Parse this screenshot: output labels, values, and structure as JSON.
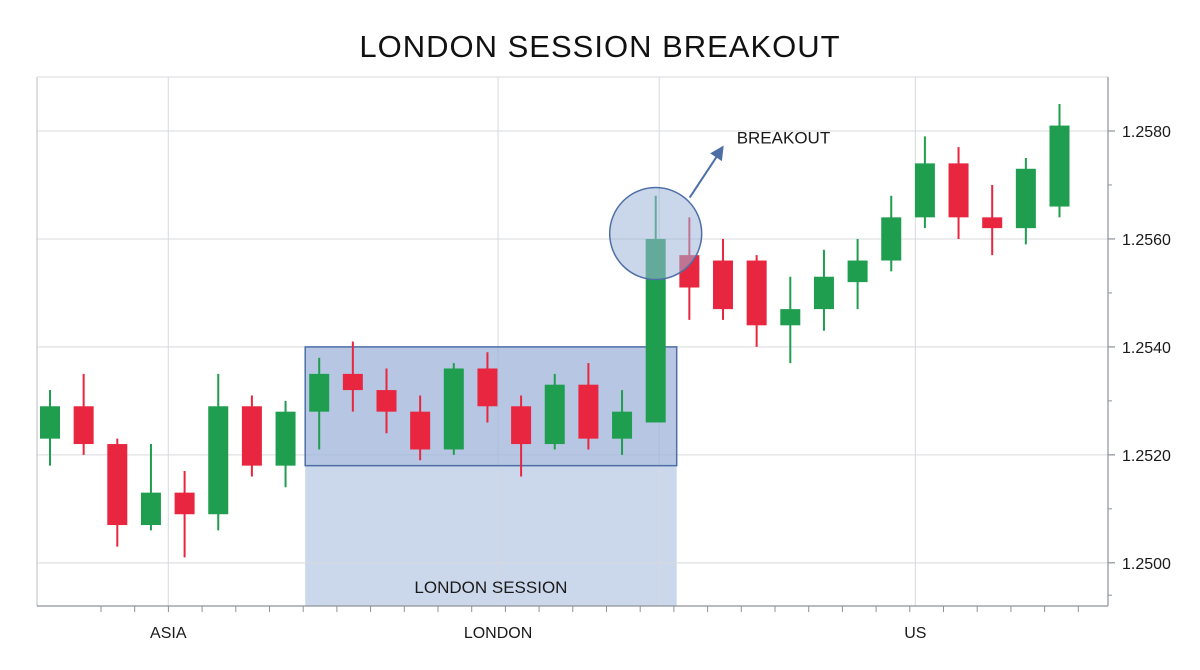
{
  "chart_data": {
    "type": "candlestick",
    "title": "LONDON SESSION BREAKOUT",
    "y_ticks": [
      "1.2500",
      "1.2520",
      "1.2540",
      "1.2560",
      "1.2580"
    ],
    "y_tick_values": [
      1.25,
      1.252,
      1.254,
      1.256,
      1.258
    ],
    "ylim": [
      1.2492,
      1.259
    ],
    "x_session_labels": [
      {
        "label": "ASIA",
        "candle": 3.5
      },
      {
        "label": "LONDON",
        "candle": 13.3
      },
      {
        "label": "US",
        "candle": 25.7
      }
    ],
    "bull_color": "#1e9e4e",
    "bear_color": "#e8263f",
    "candles": [
      {
        "o": 1.2523,
        "h": 1.2532,
        "l": 1.2518,
        "c": 1.2529
      },
      {
        "o": 1.2529,
        "h": 1.2535,
        "l": 1.252,
        "c": 1.2522
      },
      {
        "o": 1.2522,
        "h": 1.2523,
        "l": 1.2503,
        "c": 1.2507
      },
      {
        "o": 1.2507,
        "h": 1.2522,
        "l": 1.2506,
        "c": 1.2513
      },
      {
        "o": 1.2513,
        "h": 1.2517,
        "l": 1.2501,
        "c": 1.2509
      },
      {
        "o": 1.2509,
        "h": 1.2535,
        "l": 1.2506,
        "c": 1.2529
      },
      {
        "o": 1.2529,
        "h": 1.2531,
        "l": 1.2516,
        "c": 1.2518
      },
      {
        "o": 1.2518,
        "h": 1.253,
        "l": 1.2514,
        "c": 1.2528
      },
      {
        "o": 1.2528,
        "h": 1.2538,
        "l": 1.2521,
        "c": 1.2535
      },
      {
        "o": 1.2535,
        "h": 1.2541,
        "l": 1.2528,
        "c": 1.2532
      },
      {
        "o": 1.2532,
        "h": 1.2536,
        "l": 1.2524,
        "c": 1.2528
      },
      {
        "o": 1.2528,
        "h": 1.2531,
        "l": 1.2519,
        "c": 1.2521
      },
      {
        "o": 1.2521,
        "h": 1.2537,
        "l": 1.252,
        "c": 1.2536
      },
      {
        "o": 1.2536,
        "h": 1.2539,
        "l": 1.2526,
        "c": 1.2529
      },
      {
        "o": 1.2529,
        "h": 1.2531,
        "l": 1.2516,
        "c": 1.2522
      },
      {
        "o": 1.2522,
        "h": 1.2535,
        "l": 1.2521,
        "c": 1.2533
      },
      {
        "o": 1.2533,
        "h": 1.2537,
        "l": 1.2521,
        "c": 1.2523
      },
      {
        "o": 1.2523,
        "h": 1.2532,
        "l": 1.252,
        "c": 1.2528
      },
      {
        "o": 1.2526,
        "h": 1.2568,
        "l": 1.2526,
        "c": 1.256
      },
      {
        "o": 1.2557,
        "h": 1.2564,
        "l": 1.2545,
        "c": 1.2551
      },
      {
        "o": 1.2556,
        "h": 1.256,
        "l": 1.2545,
        "c": 1.2547
      },
      {
        "o": 1.2556,
        "h": 1.2557,
        "l": 1.254,
        "c": 1.2544
      },
      {
        "o": 1.2544,
        "h": 1.2553,
        "l": 1.2537,
        "c": 1.2547
      },
      {
        "o": 1.2547,
        "h": 1.2558,
        "l": 1.2543,
        "c": 1.2553
      },
      {
        "o": 1.2552,
        "h": 1.256,
        "l": 1.2547,
        "c": 1.2556
      },
      {
        "o": 1.2556,
        "h": 1.2568,
        "l": 1.2554,
        "c": 1.2564
      },
      {
        "o": 1.2564,
        "h": 1.2579,
        "l": 1.2562,
        "c": 1.2574
      },
      {
        "o": 1.2574,
        "h": 1.2577,
        "l": 1.256,
        "c": 1.2564
      },
      {
        "o": 1.2564,
        "h": 1.257,
        "l": 1.2557,
        "c": 1.2562
      },
      {
        "o": 1.2562,
        "h": 1.2575,
        "l": 1.2559,
        "c": 1.2573
      },
      {
        "o": 1.2566,
        "h": 1.2585,
        "l": 1.2564,
        "c": 1.2581
      }
    ],
    "london_session": {
      "label": "LONDON SESSION",
      "start_candle": 8,
      "end_candle": 18,
      "range_low": 1.2518,
      "range_high": 1.254
    },
    "annotation": {
      "label": "BREAKOUT",
      "candle": 18,
      "value": 1.2561
    }
  }
}
